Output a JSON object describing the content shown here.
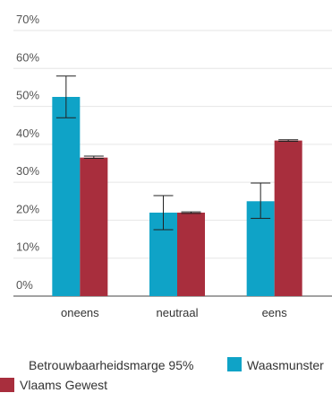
{
  "chart_data": {
    "type": "bar",
    "categories": [
      "oneens",
      "neutraal",
      "eens"
    ],
    "series": [
      {
        "name": "Waasmunster",
        "color": "#0fa3c7",
        "values": [
          52.5,
          22,
          25
        ],
        "err_low": [
          47,
          17.5,
          20.5
        ],
        "err_high": [
          58,
          26.5,
          29.8
        ]
      },
      {
        "name": "Vlaams Gewest",
        "color": "#a82e3d",
        "values": [
          36.5,
          22,
          41
        ],
        "err_low": [
          36.3,
          21.8,
          40.8
        ],
        "err_high": [
          36.9,
          22.2,
          41.2
        ]
      }
    ],
    "ylim": [
      0,
      70
    ],
    "yticks": [
      "0%",
      "10%",
      "20%",
      "30%",
      "40%",
      "50%",
      "60%",
      "70%"
    ],
    "grid": true,
    "legend_title": "Betrouwbaarheidsmarge 95%",
    "legend_placement": "bottom"
  },
  "legend": {
    "title": "Betrouwbaarheidsmarge 95%",
    "items": [
      "Waasmunster",
      "Vlaams Gewest"
    ]
  }
}
